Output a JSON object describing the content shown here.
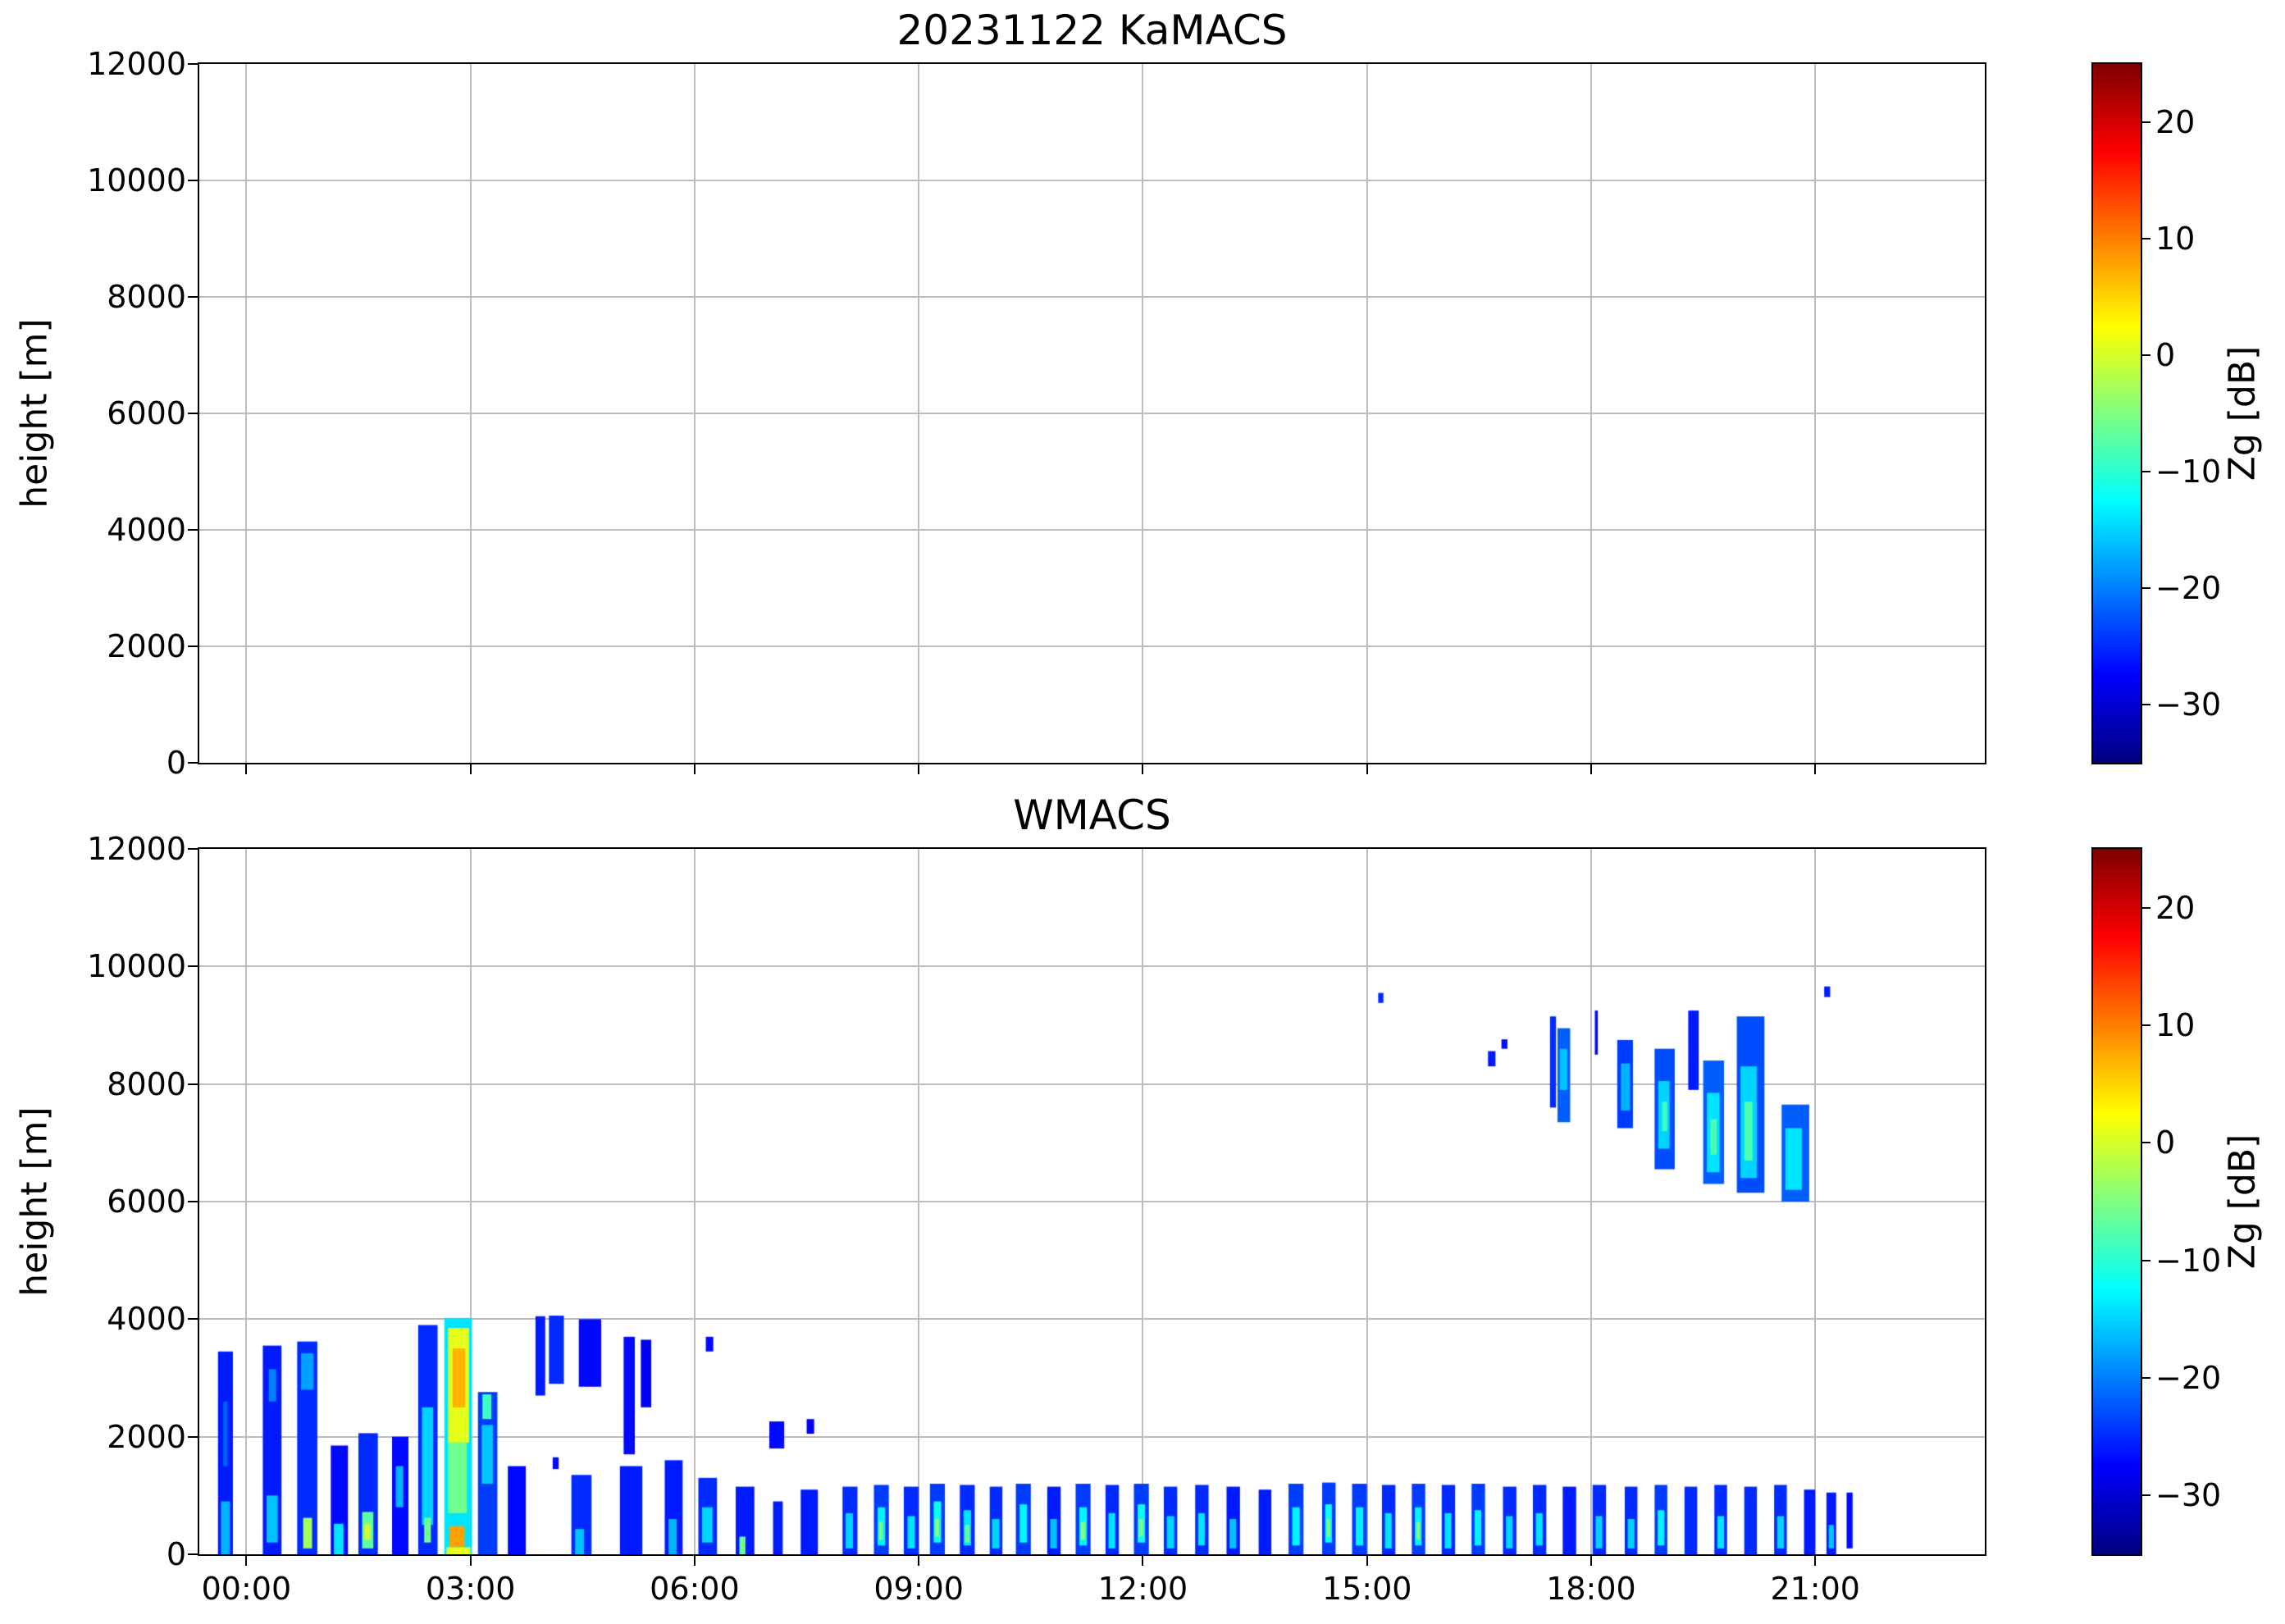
{
  "style": {
    "background": "#ffffff",
    "axis_color": "#000000",
    "grid_color": "#bdbdbd"
  },
  "chart_data": [
    {
      "type": "heatmap",
      "title": "20231122 KaMACS",
      "xlabel": "",
      "ylabel": "height [m]",
      "ylim": [
        0,
        12000
      ],
      "xlim_hours": [
        -0.63,
        23.27
      ],
      "y_ticks": [
        0,
        2000,
        4000,
        6000,
        8000,
        10000,
        12000
      ],
      "y_tick_labels": [
        "0",
        "2000",
        "4000",
        "6000",
        "8000",
        "10000",
        "12000"
      ],
      "x_tick_hours": [
        0,
        3,
        6,
        9,
        12,
        15,
        18,
        21
      ],
      "x_ticks": [
        "00:00",
        "03:00",
        "06:00",
        "09:00",
        "12:00",
        "15:00",
        "18:00",
        "21:00"
      ],
      "x_tick_labels_shown": false,
      "grid": true,
      "legend": "none",
      "colorbar": {
        "label": "Zg [dB]",
        "vmin": -35,
        "vmax": 25,
        "colormap": "jet",
        "ticks": [
          20,
          10,
          0,
          -10,
          -20,
          -30
        ],
        "tick_labels": [
          "20",
          "10",
          "0",
          "−10",
          "−20",
          "−30"
        ]
      },
      "points_format": [
        "t_start_hours",
        "t_end_hours",
        "height_min_m",
        "height_max_m",
        "Zg_dB"
      ],
      "points": []
    },
    {
      "type": "heatmap",
      "title": "WMACS",
      "xlabel": "",
      "ylabel": "height [m]",
      "ylim": [
        0,
        12000
      ],
      "xlim_hours": [
        -0.63,
        23.27
      ],
      "y_ticks": [
        0,
        2000,
        4000,
        6000,
        8000,
        10000,
        12000
      ],
      "y_tick_labels": [
        "0",
        "2000",
        "4000",
        "6000",
        "8000",
        "10000",
        "12000"
      ],
      "x_tick_hours": [
        0,
        3,
        6,
        9,
        12,
        15,
        18,
        21
      ],
      "x_ticks": [
        "00:00",
        "03:00",
        "06:00",
        "09:00",
        "12:00",
        "15:00",
        "18:00",
        "21:00"
      ],
      "x_tick_labels_shown": true,
      "grid": true,
      "legend": "none",
      "colorbar": {
        "label": "Zg [dB]",
        "vmin": -35,
        "vmax": 25,
        "colormap": "jet",
        "ticks": [
          20,
          10,
          0,
          -10,
          -20,
          -30
        ],
        "tick_labels": [
          "20",
          "10",
          "0",
          "−10",
          "−20",
          "−30"
        ]
      },
      "points_format": [
        "t_start_hours",
        "t_end_hours",
        "height_min_m",
        "height_max_m",
        "Zg_dB"
      ],
      "points": [
        [
          -0.38,
          -0.18,
          0,
          3450,
          -26
        ],
        [
          -0.34,
          -0.22,
          0,
          900,
          -17
        ],
        [
          -0.31,
          -0.25,
          1500,
          2600,
          -22
        ],
        [
          0.22,
          0.47,
          0,
          3550,
          -26
        ],
        [
          0.27,
          0.42,
          200,
          1000,
          -16
        ],
        [
          0.3,
          0.4,
          2600,
          3150,
          -20
        ],
        [
          0.68,
          0.95,
          0,
          3620,
          -25
        ],
        [
          0.73,
          0.9,
          2800,
          3420,
          -18
        ],
        [
          0.76,
          0.88,
          100,
          620,
          -3
        ],
        [
          1.13,
          1.36,
          0,
          1850,
          -27
        ],
        [
          1.17,
          1.3,
          0,
          520,
          -14
        ],
        [
          1.5,
          1.76,
          0,
          2060,
          -25
        ],
        [
          1.55,
          1.7,
          100,
          720,
          -7
        ],
        [
          1.58,
          1.66,
          250,
          520,
          0
        ],
        [
          1.95,
          2.17,
          0,
          2000,
          -27
        ],
        [
          2.0,
          2.1,
          800,
          1500,
          -17
        ],
        [
          2.3,
          2.56,
          0,
          3900,
          -25
        ],
        [
          2.35,
          2.5,
          500,
          2500,
          -15
        ],
        [
          2.38,
          2.47,
          200,
          620,
          -6
        ],
        [
          2.65,
          3.02,
          0,
          4020,
          -14
        ],
        [
          2.7,
          2.98,
          1900,
          3850,
          1
        ],
        [
          2.76,
          2.93,
          2500,
          3500,
          7
        ],
        [
          2.7,
          2.95,
          700,
          1900,
          -6
        ],
        [
          2.72,
          2.92,
          120,
          480,
          8
        ],
        [
          2.68,
          3.0,
          0,
          120,
          1
        ],
        [
          3.1,
          3.36,
          0,
          2760,
          -24
        ],
        [
          3.15,
          3.3,
          1200,
          2200,
          -16
        ],
        [
          3.16,
          3.28,
          2300,
          2720,
          -9
        ],
        [
          3.5,
          3.74,
          0,
          1500,
          -27
        ],
        [
          3.87,
          4.0,
          2700,
          4050,
          -26
        ],
        [
          4.05,
          4.25,
          2900,
          4060,
          -25
        ],
        [
          4.1,
          4.18,
          1450,
          1650,
          -27
        ],
        [
          4.35,
          4.62,
          0,
          1350,
          -25
        ],
        [
          4.4,
          4.52,
          0,
          430,
          -16
        ],
        [
          4.45,
          4.75,
          2850,
          4000,
          -27
        ],
        [
          5.0,
          5.3,
          0,
          1500,
          -26
        ],
        [
          5.05,
          5.2,
          1700,
          3700,
          -27
        ],
        [
          5.28,
          5.42,
          2500,
          3650,
          -28
        ],
        [
          5.6,
          5.84,
          0,
          1600,
          -26
        ],
        [
          5.65,
          5.76,
          0,
          600,
          -17
        ],
        [
          6.05,
          6.3,
          0,
          1300,
          -25
        ],
        [
          6.1,
          6.24,
          200,
          800,
          -15
        ],
        [
          6.15,
          6.25,
          3450,
          3700,
          -27
        ],
        [
          6.55,
          6.8,
          0,
          1150,
          -26
        ],
        [
          6.6,
          6.68,
          0,
          300,
          -6
        ],
        [
          7.0,
          7.2,
          1800,
          2260,
          -27
        ],
        [
          7.05,
          7.18,
          0,
          900,
          -26
        ],
        [
          7.42,
          7.65,
          0,
          1100,
          -26
        ],
        [
          7.5,
          7.6,
          2050,
          2300,
          -28
        ],
        [
          7.98,
          8.18,
          0,
          1150,
          -25
        ],
        [
          8.02,
          8.12,
          100,
          700,
          -15
        ],
        [
          8.4,
          8.6,
          0,
          1180,
          -24
        ],
        [
          8.45,
          8.55,
          150,
          800,
          -13
        ],
        [
          8.47,
          8.52,
          250,
          550,
          -5
        ],
        [
          8.8,
          9.0,
          0,
          1150,
          -25
        ],
        [
          8.85,
          8.95,
          100,
          650,
          -14
        ],
        [
          9.15,
          9.35,
          0,
          1200,
          -24
        ],
        [
          9.2,
          9.3,
          200,
          900,
          -12
        ],
        [
          9.22,
          9.27,
          300,
          600,
          -4
        ],
        [
          9.55,
          9.75,
          0,
          1180,
          -25
        ],
        [
          9.6,
          9.7,
          150,
          750,
          -14
        ],
        [
          9.62,
          9.68,
          200,
          500,
          -6
        ],
        [
          9.95,
          10.12,
          0,
          1150,
          -25
        ],
        [
          9.98,
          10.08,
          100,
          600,
          -15
        ],
        [
          10.3,
          10.5,
          0,
          1200,
          -24
        ],
        [
          10.35,
          10.45,
          200,
          850,
          -13
        ],
        [
          10.72,
          10.9,
          0,
          1150,
          -26
        ],
        [
          10.76,
          10.85,
          100,
          600,
          -16
        ],
        [
          11.1,
          11.3,
          0,
          1200,
          -24
        ],
        [
          11.15,
          11.25,
          150,
          800,
          -13
        ],
        [
          11.17,
          11.23,
          250,
          550,
          -5
        ],
        [
          11.5,
          11.68,
          0,
          1180,
          -25
        ],
        [
          11.54,
          11.63,
          100,
          700,
          -14
        ],
        [
          11.88,
          12.08,
          0,
          1200,
          -24
        ],
        [
          11.93,
          12.03,
          200,
          850,
          -12
        ],
        [
          11.95,
          12.0,
          300,
          600,
          -4
        ],
        [
          12.28,
          12.46,
          0,
          1150,
          -25
        ],
        [
          12.32,
          12.42,
          100,
          650,
          -15
        ],
        [
          12.7,
          12.88,
          0,
          1180,
          -25
        ],
        [
          12.74,
          12.83,
          150,
          700,
          -14
        ],
        [
          13.12,
          13.3,
          0,
          1150,
          -26
        ],
        [
          13.16,
          13.25,
          100,
          600,
          -16
        ],
        [
          13.55,
          13.72,
          0,
          1100,
          -26
        ],
        [
          13.95,
          14.15,
          0,
          1200,
          -24
        ],
        [
          14.0,
          14.1,
          150,
          800,
          -13
        ],
        [
          14.4,
          14.58,
          0,
          1220,
          -24
        ],
        [
          14.44,
          14.53,
          200,
          850,
          -12
        ],
        [
          14.46,
          14.51,
          300,
          600,
          -5
        ],
        [
          14.8,
          15.0,
          0,
          1200,
          -24
        ],
        [
          14.85,
          14.95,
          150,
          800,
          -13
        ],
        [
          15.2,
          15.38,
          0,
          1180,
          -25
        ],
        [
          15.24,
          15.33,
          100,
          700,
          -14
        ],
        [
          15.6,
          15.78,
          0,
          1200,
          -24
        ],
        [
          15.64,
          15.73,
          150,
          800,
          -13
        ],
        [
          15.66,
          15.71,
          250,
          550,
          -5
        ],
        [
          16.0,
          16.18,
          0,
          1180,
          -25
        ],
        [
          16.04,
          16.13,
          100,
          700,
          -14
        ],
        [
          16.4,
          16.58,
          0,
          1200,
          -24
        ],
        [
          16.44,
          16.53,
          150,
          750,
          -13
        ],
        [
          16.82,
          17.0,
          0,
          1150,
          -25
        ],
        [
          16.86,
          16.95,
          100,
          650,
          -15
        ],
        [
          17.22,
          17.4,
          0,
          1180,
          -25
        ],
        [
          17.26,
          17.35,
          150,
          700,
          -14
        ],
        [
          17.62,
          17.8,
          0,
          1150,
          -26
        ],
        [
          18.02,
          18.2,
          0,
          1180,
          -25
        ],
        [
          18.06,
          18.15,
          100,
          650,
          -15
        ],
        [
          18.45,
          18.62,
          0,
          1150,
          -25
        ],
        [
          18.49,
          18.58,
          100,
          600,
          -15
        ],
        [
          18.85,
          19.02,
          0,
          1180,
          -24
        ],
        [
          18.89,
          18.98,
          150,
          750,
          -13
        ],
        [
          19.25,
          19.42,
          0,
          1150,
          -25
        ],
        [
          19.65,
          19.82,
          0,
          1180,
          -25
        ],
        [
          19.69,
          19.78,
          100,
          650,
          -14
        ],
        [
          20.05,
          20.22,
          0,
          1150,
          -25
        ],
        [
          20.45,
          20.62,
          0,
          1180,
          -25
        ],
        [
          20.49,
          20.58,
          100,
          650,
          -15
        ],
        [
          20.85,
          21.0,
          0,
          1100,
          -26
        ],
        [
          21.15,
          21.28,
          0,
          1050,
          -26
        ],
        [
          21.18,
          21.25,
          100,
          500,
          -16
        ],
        [
          21.42,
          21.5,
          100,
          1050,
          -27
        ],
        [
          15.15,
          15.22,
          9380,
          9550,
          -25
        ],
        [
          16.62,
          16.72,
          8300,
          8560,
          -26
        ],
        [
          16.8,
          16.88,
          8600,
          8760,
          -27
        ],
        [
          17.45,
          17.53,
          7600,
          9150,
          -25
        ],
        [
          17.55,
          17.72,
          7350,
          8950,
          -22
        ],
        [
          17.58,
          17.68,
          7900,
          8600,
          -16
        ],
        [
          18.05,
          18.09,
          8500,
          9250,
          -27
        ],
        [
          18.35,
          18.56,
          7250,
          8750,
          -24
        ],
        [
          18.4,
          18.52,
          7550,
          8350,
          -17
        ],
        [
          18.85,
          19.12,
          6550,
          8600,
          -23
        ],
        [
          18.9,
          19.05,
          6900,
          8050,
          -15
        ],
        [
          18.95,
          19.02,
          7200,
          7700,
          -9
        ],
        [
          19.3,
          19.44,
          7900,
          9250,
          -26
        ],
        [
          19.5,
          19.78,
          6300,
          8400,
          -22
        ],
        [
          19.55,
          19.72,
          6500,
          7850,
          -14
        ],
        [
          19.6,
          19.68,
          6800,
          7400,
          -8
        ],
        [
          19.95,
          20.32,
          6150,
          9150,
          -23
        ],
        [
          20.0,
          20.22,
          6400,
          8300,
          -15
        ],
        [
          20.05,
          20.16,
          6700,
          7700,
          -8
        ],
        [
          20.55,
          20.92,
          6000,
          7650,
          -22
        ],
        [
          20.6,
          20.82,
          6200,
          7250,
          -14
        ],
        [
          21.12,
          21.2,
          9480,
          9660,
          -26
        ]
      ]
    }
  ]
}
